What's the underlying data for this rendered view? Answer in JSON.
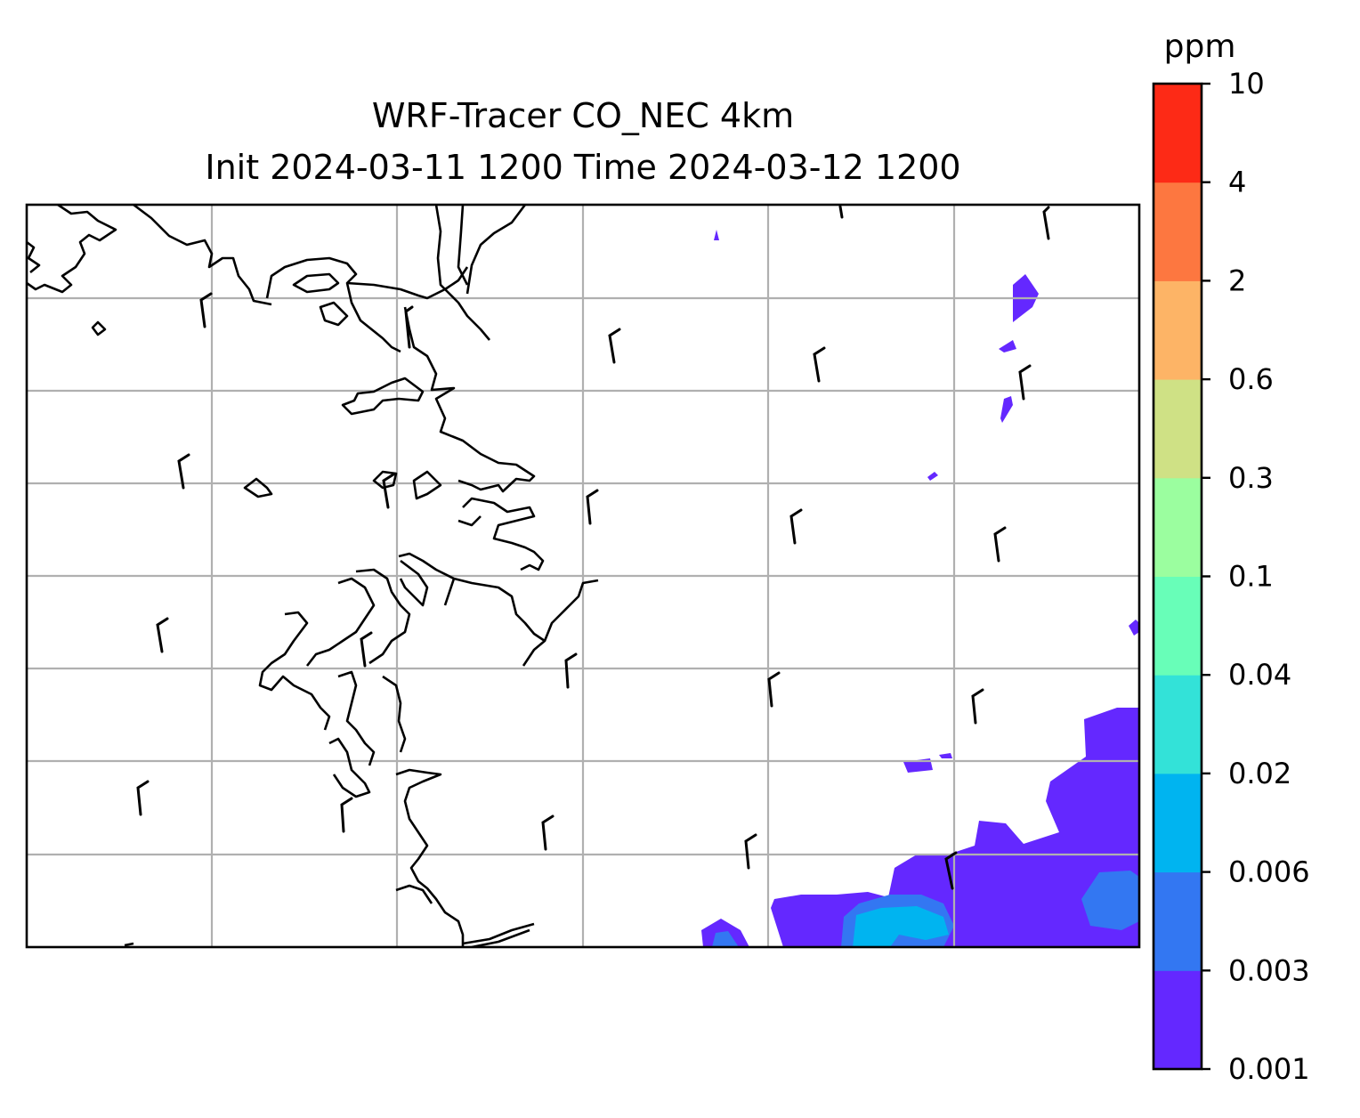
{
  "title": {
    "line1": "WRF-Tracer CO_NEC 4km",
    "line2": "Init 2024-03-11 1200 Time 2024-03-12 1200"
  },
  "colorbar": {
    "unit": "ppm",
    "levels": [
      "0.001",
      "0.003",
      "0.006",
      "0.02",
      "0.04",
      "0.1",
      "0.3",
      "0.6",
      "2",
      "4",
      "10"
    ],
    "colors": [
      "#6428ff",
      "#3377f2",
      "#00b4f0",
      "#33e2d8",
      "#68feb8",
      "#9bfe9f",
      "#cfe185",
      "#fdb466",
      "#fd7740",
      "#fd2a16"
    ]
  },
  "map": {
    "gridlines": true,
    "gridline_color": "#b0b0b0",
    "coastline_color": "#000000"
  }
}
